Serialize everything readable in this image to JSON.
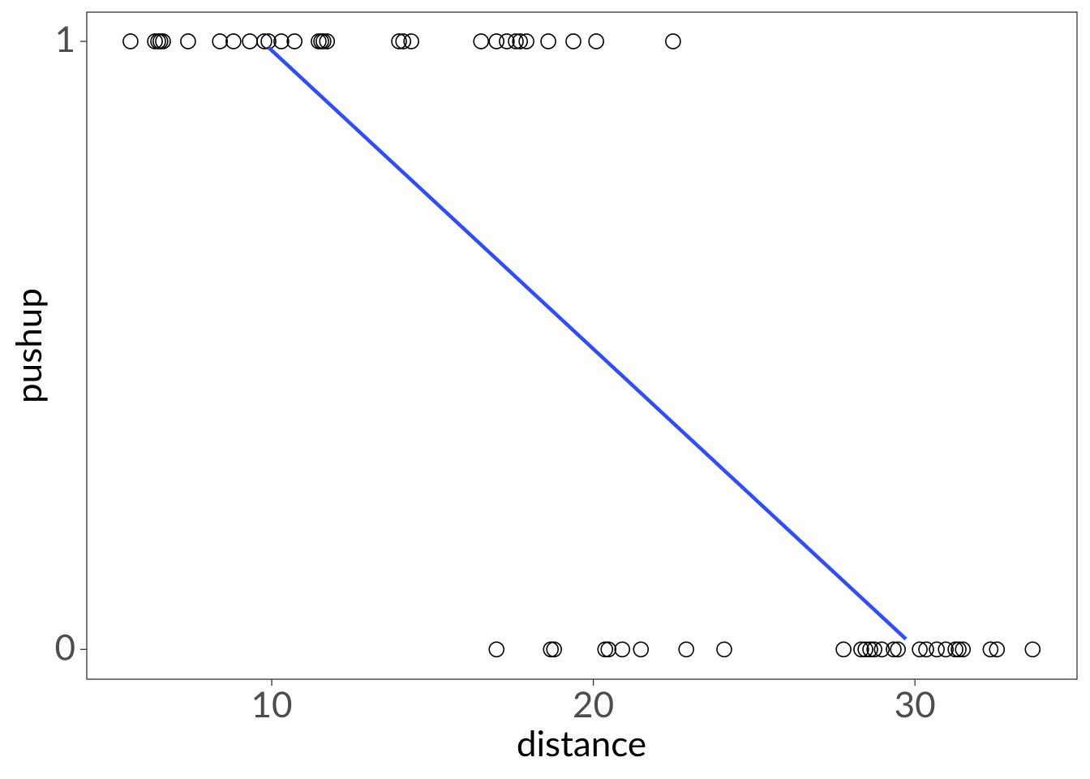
{
  "chart_data": {
    "type": "scatter",
    "xlabel": "distance",
    "ylabel": "pushup",
    "xlim": [
      4.25,
      35.04
    ],
    "ylim": [
      -0.049,
      1.048
    ],
    "xticks": [
      10,
      20,
      30
    ],
    "yticks": [
      0,
      1
    ],
    "grid": false,
    "series": [
      {
        "type": "scatter",
        "color": "#000000",
        "x": [
          5.61,
          6.37,
          6.47,
          6.54,
          6.62,
          7.4,
          8.39,
          8.81,
          9.32,
          9.77,
          9.9,
          10.3,
          10.71,
          11.46,
          11.54,
          11.61,
          11.72,
          13.96,
          14.09,
          14.34,
          16.51,
          16.99,
          17.31,
          17.59,
          17.72,
          17.92,
          18.6,
          19.38,
          20.09,
          22.48,
          16.99,
          18.68,
          18.78,
          20.37,
          20.47,
          20.9,
          21.48,
          22.89,
          24.07,
          27.78,
          28.33,
          28.46,
          28.61,
          28.74,
          28.97,
          29.34,
          29.47,
          30.15,
          30.35,
          30.68,
          30.96,
          31.26,
          31.36,
          31.49,
          32.35,
          32.55,
          33.66
        ],
        "values": [
          1,
          1,
          1,
          1,
          1,
          1,
          1,
          1,
          1,
          1,
          1,
          1,
          1,
          1,
          1,
          1,
          1,
          1,
          1,
          1,
          1,
          1,
          1,
          1,
          1,
          1,
          1,
          1,
          1,
          1,
          0,
          0,
          0,
          0,
          0,
          0,
          0,
          0,
          0,
          0,
          0,
          0,
          0,
          0,
          0,
          0,
          0,
          0,
          0,
          0,
          0,
          0,
          0,
          0,
          0,
          0,
          0
        ]
      },
      {
        "type": "line",
        "color": "#2f4cff",
        "x": [
          9.9,
          29.72
        ],
        "values": [
          0.99,
          0.017
        ]
      }
    ]
  }
}
